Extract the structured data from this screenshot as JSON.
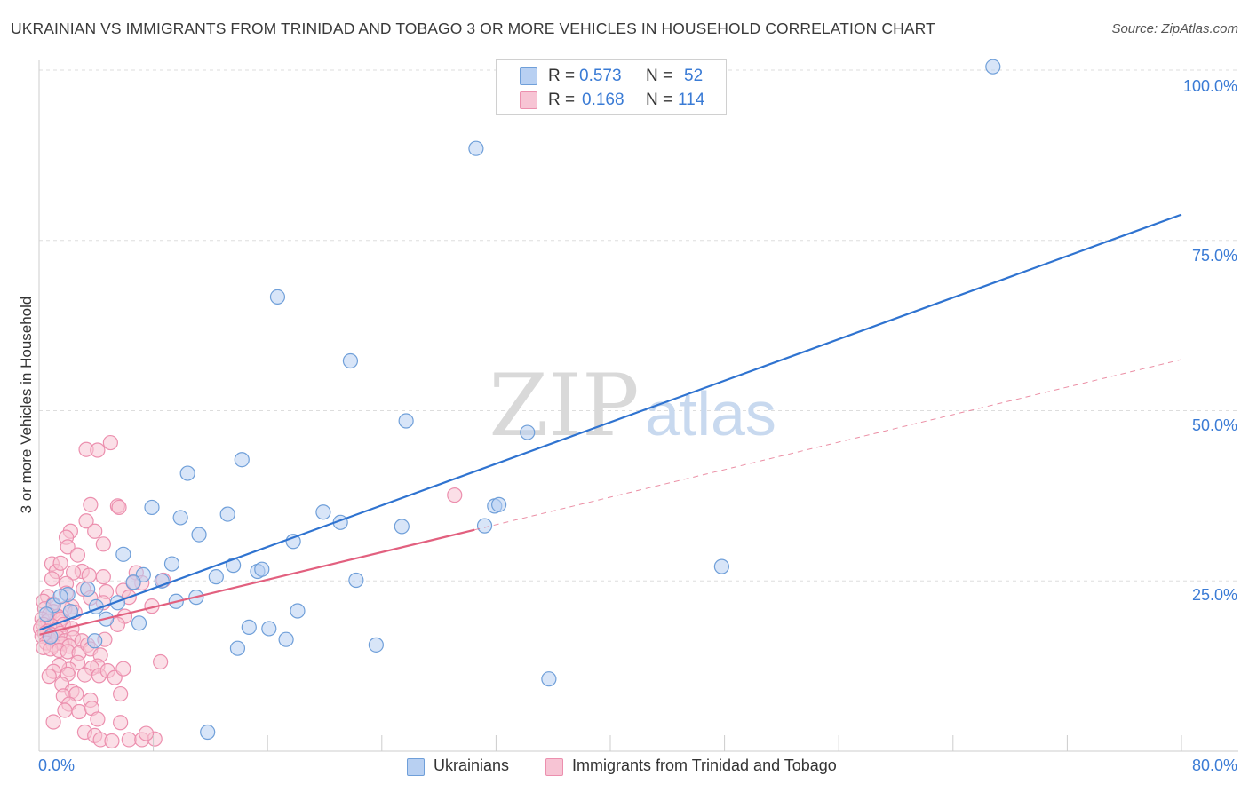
{
  "header": {
    "title": "UKRAINIAN VS IMMIGRANTS FROM TRINIDAD AND TOBAGO 3 OR MORE VEHICLES IN HOUSEHOLD CORRELATION CHART",
    "source": "Source: ZipAtlas.com"
  },
  "watermark": {
    "zip": "ZIP",
    "atlas": "atlas"
  },
  "legend": {
    "ukrainians": {
      "r_label": "R =",
      "r_value": "0.573",
      "n_label": "N =",
      "n_value": "52"
    },
    "trinidad": {
      "r_label": "R =",
      "r_value": "0.168",
      "n_label": "N =",
      "n_value": "114"
    }
  },
  "colors": {
    "blue_fill": "#b8d0f2",
    "blue_stroke": "#6f9fd9",
    "blue_line": "#2f73d0",
    "pink_fill": "#f7c4d4",
    "pink_stroke": "#ec8fae",
    "pink_line": "#e2607f",
    "tick_text": "#3a7bd5",
    "grid": "#dddddd"
  },
  "chart_data": {
    "type": "scatter",
    "title": "UKRAINIAN VS IMMIGRANTS FROM TRINIDAD AND TOBAGO 3 OR MORE VEHICLES IN HOUSEHOLD CORRELATION CHART",
    "xlabel": "",
    "ylabel": "3 or more Vehicles in Household",
    "xlim": [
      0,
      80
    ],
    "ylim": [
      0,
      102
    ],
    "x_tick_labels": {
      "min": "0.0%",
      "max": "80.0%"
    },
    "y_ticks": [
      {
        "value": 25,
        "label": "25.0%"
      },
      {
        "value": 50,
        "label": "50.0%"
      },
      {
        "value": 75,
        "label": "75.0%"
      },
      {
        "value": 100,
        "label": "100.0%"
      }
    ],
    "x_gridlines": [
      8,
      16,
      24,
      32,
      40,
      48,
      56,
      64,
      72,
      80
    ],
    "series": [
      {
        "name": "Ukrainians",
        "color": "blue",
        "trend": {
          "x": [
            0,
            80
          ],
          "y": [
            17.8,
            78.8
          ],
          "style": "solid"
        },
        "points": [
          [
            66.8,
            100.5
          ],
          [
            30.6,
            88.5
          ],
          [
            16.7,
            66.7
          ],
          [
            21.8,
            57.3
          ],
          [
            25.7,
            48.5
          ],
          [
            34.2,
            46.8
          ],
          [
            10.4,
            40.8
          ],
          [
            14.2,
            42.8
          ],
          [
            7.9,
            35.8
          ],
          [
            9.9,
            34.3
          ],
          [
            13.2,
            34.8
          ],
          [
            11.2,
            31.8
          ],
          [
            19.9,
            35.1
          ],
          [
            21.1,
            33.6
          ],
          [
            17.8,
            30.8
          ],
          [
            25.4,
            33.0
          ],
          [
            31.9,
            36.0
          ],
          [
            32.2,
            36.2
          ],
          [
            31.2,
            33.1
          ],
          [
            47.8,
            27.1
          ],
          [
            5.9,
            28.9
          ],
          [
            7.3,
            25.9
          ],
          [
            9.3,
            27.5
          ],
          [
            8.6,
            25.0
          ],
          [
            13.6,
            27.3
          ],
          [
            12.4,
            25.6
          ],
          [
            15.3,
            26.4
          ],
          [
            15.6,
            26.7
          ],
          [
            22.2,
            25.1
          ],
          [
            11.0,
            22.6
          ],
          [
            9.6,
            22.0
          ],
          [
            6.6,
            24.8
          ],
          [
            5.5,
            21.8
          ],
          [
            2.0,
            23.0
          ],
          [
            3.4,
            23.8
          ],
          [
            4.0,
            21.2
          ],
          [
            1.0,
            21.4
          ],
          [
            1.5,
            22.7
          ],
          [
            2.2,
            20.5
          ],
          [
            0.5,
            20.1
          ],
          [
            4.7,
            19.4
          ],
          [
            7.0,
            18.8
          ],
          [
            14.7,
            18.2
          ],
          [
            16.1,
            18.0
          ],
          [
            18.1,
            20.6
          ],
          [
            17.3,
            16.4
          ],
          [
            3.9,
            16.2
          ],
          [
            13.9,
            15.1
          ],
          [
            23.6,
            15.6
          ],
          [
            35.7,
            10.6
          ],
          [
            11.8,
            2.8
          ],
          [
            0.8,
            16.8
          ]
        ]
      },
      {
        "name": "Immigrants from Trinidad and Tobago",
        "color": "pink",
        "trend": {
          "x": [
            0,
            30.5,
            80
          ],
          "y": [
            17.1,
            32.5,
            57.5
          ],
          "style": "solid-then-dashed"
        },
        "points": [
          [
            5.0,
            45.3
          ],
          [
            3.3,
            44.3
          ],
          [
            4.1,
            44.2
          ],
          [
            5.5,
            36.0
          ],
          [
            3.6,
            36.2
          ],
          [
            5.6,
            35.8
          ],
          [
            3.3,
            33.8
          ],
          [
            2.2,
            32.3
          ],
          [
            3.9,
            32.3
          ],
          [
            1.9,
            31.4
          ],
          [
            4.5,
            30.4
          ],
          [
            2.0,
            30.0
          ],
          [
            0.9,
            27.5
          ],
          [
            1.2,
            26.4
          ],
          [
            3.0,
            26.4
          ],
          [
            2.4,
            26.2
          ],
          [
            3.5,
            25.8
          ],
          [
            4.5,
            25.6
          ],
          [
            6.8,
            26.2
          ],
          [
            7.2,
            24.7
          ],
          [
            1.9,
            24.6
          ],
          [
            3.1,
            23.8
          ],
          [
            4.7,
            23.4
          ],
          [
            5.9,
            23.6
          ],
          [
            0.6,
            22.7
          ],
          [
            0.3,
            22.0
          ],
          [
            1.0,
            21.6
          ],
          [
            2.3,
            21.2
          ],
          [
            4.5,
            21.8
          ],
          [
            6.3,
            22.6
          ],
          [
            6.6,
            24.7
          ],
          [
            8.7,
            25.1
          ],
          [
            0.4,
            20.9
          ],
          [
            1.0,
            20.5
          ],
          [
            1.8,
            20.9
          ],
          [
            0.7,
            20.0
          ],
          [
            1.3,
            19.8
          ],
          [
            0.2,
            19.4
          ],
          [
            0.6,
            19.1
          ],
          [
            1.5,
            19.4
          ],
          [
            0.3,
            18.6
          ],
          [
            0.9,
            18.4
          ],
          [
            1.7,
            18.6
          ],
          [
            2.3,
            18.0
          ],
          [
            0.1,
            18.0
          ],
          [
            0.6,
            17.6
          ],
          [
            1.2,
            17.9
          ],
          [
            0.4,
            17.3
          ],
          [
            0.9,
            17.1
          ],
          [
            1.5,
            17.3
          ],
          [
            0.2,
            16.9
          ],
          [
            0.7,
            16.5
          ],
          [
            1.3,
            16.7
          ],
          [
            1.8,
            16.2
          ],
          [
            2.4,
            16.6
          ],
          [
            3.0,
            16.2
          ],
          [
            0.5,
            15.9
          ],
          [
            1.0,
            15.6
          ],
          [
            1.6,
            15.8
          ],
          [
            2.1,
            15.4
          ],
          [
            0.3,
            15.2
          ],
          [
            0.8,
            15.0
          ],
          [
            1.4,
            14.8
          ],
          [
            2.0,
            14.6
          ],
          [
            2.8,
            14.4
          ],
          [
            3.4,
            15.6
          ],
          [
            4.6,
            16.4
          ],
          [
            3.6,
            15.0
          ],
          [
            4.3,
            14.1
          ],
          [
            2.7,
            13.0
          ],
          [
            4.1,
            12.5
          ],
          [
            3.7,
            12.2
          ],
          [
            2.1,
            12.0
          ],
          [
            1.4,
            12.6
          ],
          [
            2.0,
            11.3
          ],
          [
            1.0,
            11.7
          ],
          [
            0.7,
            11.0
          ],
          [
            3.2,
            11.2
          ],
          [
            4.2,
            11.1
          ],
          [
            4.8,
            11.8
          ],
          [
            5.3,
            10.8
          ],
          [
            5.9,
            12.1
          ],
          [
            8.5,
            13.1
          ],
          [
            1.6,
            9.8
          ],
          [
            2.3,
            8.8
          ],
          [
            1.7,
            8.1
          ],
          [
            2.6,
            8.4
          ],
          [
            3.6,
            7.5
          ],
          [
            2.1,
            6.9
          ],
          [
            1.8,
            6.0
          ],
          [
            2.8,
            5.8
          ],
          [
            3.7,
            6.3
          ],
          [
            5.7,
            8.4
          ],
          [
            1.0,
            4.3
          ],
          [
            4.1,
            4.7
          ],
          [
            5.7,
            4.2
          ],
          [
            3.2,
            2.8
          ],
          [
            3.9,
            2.3
          ],
          [
            4.3,
            1.7
          ],
          [
            5.1,
            1.5
          ],
          [
            6.3,
            1.7
          ],
          [
            7.2,
            1.7
          ],
          [
            8.1,
            1.8
          ],
          [
            7.5,
            2.6
          ],
          [
            29.1,
            37.6
          ],
          [
            1.5,
            27.6
          ],
          [
            2.7,
            28.8
          ],
          [
            0.9,
            25.3
          ],
          [
            1.9,
            23.2
          ],
          [
            3.6,
            22.5
          ],
          [
            2.5,
            20.4
          ],
          [
            6.0,
            19.8
          ],
          [
            7.9,
            21.3
          ],
          [
            5.5,
            18.6
          ]
        ]
      }
    ]
  },
  "bottom_legend": {
    "ukrainians_label": "Ukrainians",
    "trinidad_label": "Immigrants from Trinidad and Tobago"
  }
}
